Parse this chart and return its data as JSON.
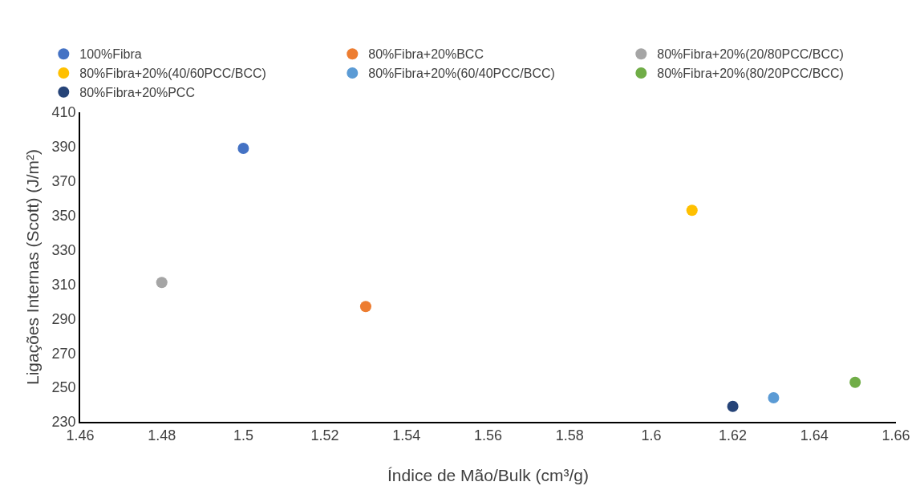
{
  "chart_data": {
    "type": "scatter",
    "xlabel": "Índice de Mão/Bulk (cm³/g)",
    "ylabel": "Ligações Internas (Scott) (J/m²)",
    "xlim": [
      1.46,
      1.66
    ],
    "xticks": [
      1.46,
      1.48,
      1.5,
      1.52,
      1.54,
      1.56,
      1.58,
      1.6,
      1.62,
      1.64,
      1.66
    ],
    "ylim": [
      230,
      410
    ],
    "yticks": [
      230,
      250,
      270,
      290,
      310,
      330,
      350,
      370,
      390,
      410
    ],
    "grid": false,
    "legend": "top",
    "marker": "circle",
    "series": [
      {
        "name": "100%Fibra",
        "color": "#4472c4",
        "x": [
          1.5
        ],
        "values": [
          389
        ]
      },
      {
        "name": "80%Fibra+20%BCC",
        "color": "#ed7d31",
        "x": [
          1.53
        ],
        "values": [
          297
        ]
      },
      {
        "name": "80%Fibra+20%(20/80PCC/BCC)",
        "color": "#a5a5a5",
        "x": [
          1.48
        ],
        "values": [
          311
        ]
      },
      {
        "name": "80%Fibra+20%(40/60PCC/BCC)",
        "color": "#ffc000",
        "x": [
          1.61
        ],
        "values": [
          353
        ]
      },
      {
        "name": "80%Fibra+20%(60/40PCC/BCC)",
        "color": "#5b9bd5",
        "x": [
          1.63
        ],
        "values": [
          244
        ]
      },
      {
        "name": "80%Fibra+20%(80/20PCC/BCC)",
        "color": "#70ad47",
        "x": [
          1.65
        ],
        "values": [
          253
        ]
      },
      {
        "name": "80%Fibra+20%PCC",
        "color": "#264478",
        "x": [
          1.62
        ],
        "values": [
          239
        ]
      }
    ]
  }
}
